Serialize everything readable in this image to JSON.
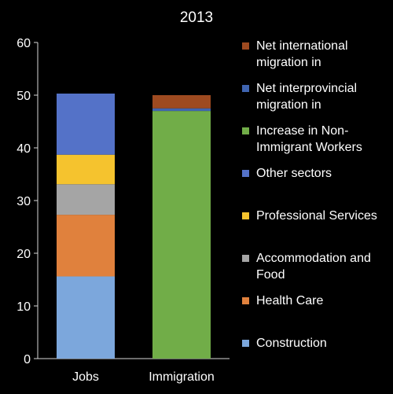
{
  "chart_data": {
    "type": "bar",
    "stacked": true,
    "title": "2013",
    "categories": [
      "Jobs",
      "Immigration"
    ],
    "ylim": [
      0,
      60
    ],
    "yticks": [
      0,
      10,
      20,
      30,
      40,
      50,
      60
    ],
    "grid": false,
    "legend_position": "right",
    "series": [
      {
        "name": "Construction",
        "color": "#7CA7DC",
        "values": [
          15.6,
          0
        ]
      },
      {
        "name": "Health Care",
        "color": "#E0813D",
        "values": [
          11.7,
          0
        ]
      },
      {
        "name": "Accommodation and Food",
        "color": "#A5A5A5",
        "values": [
          5.8,
          0
        ]
      },
      {
        "name": "Professional Services",
        "color": "#F5C32E",
        "values": [
          5.6,
          0
        ]
      },
      {
        "name": "Other sectors",
        "color": "#5472C8",
        "values": [
          11.6,
          0
        ]
      },
      {
        "name": "Increase in Non-Immigrant Workers",
        "color": "#71AD48",
        "values": [
          0,
          47.0
        ]
      },
      {
        "name": "Net interprovincial migration in",
        "color": "#3F64B0",
        "values": [
          0,
          0.5
        ]
      },
      {
        "name": "Net international migration in",
        "color": "#9E4A20",
        "values": [
          0,
          2.5
        ]
      }
    ]
  }
}
